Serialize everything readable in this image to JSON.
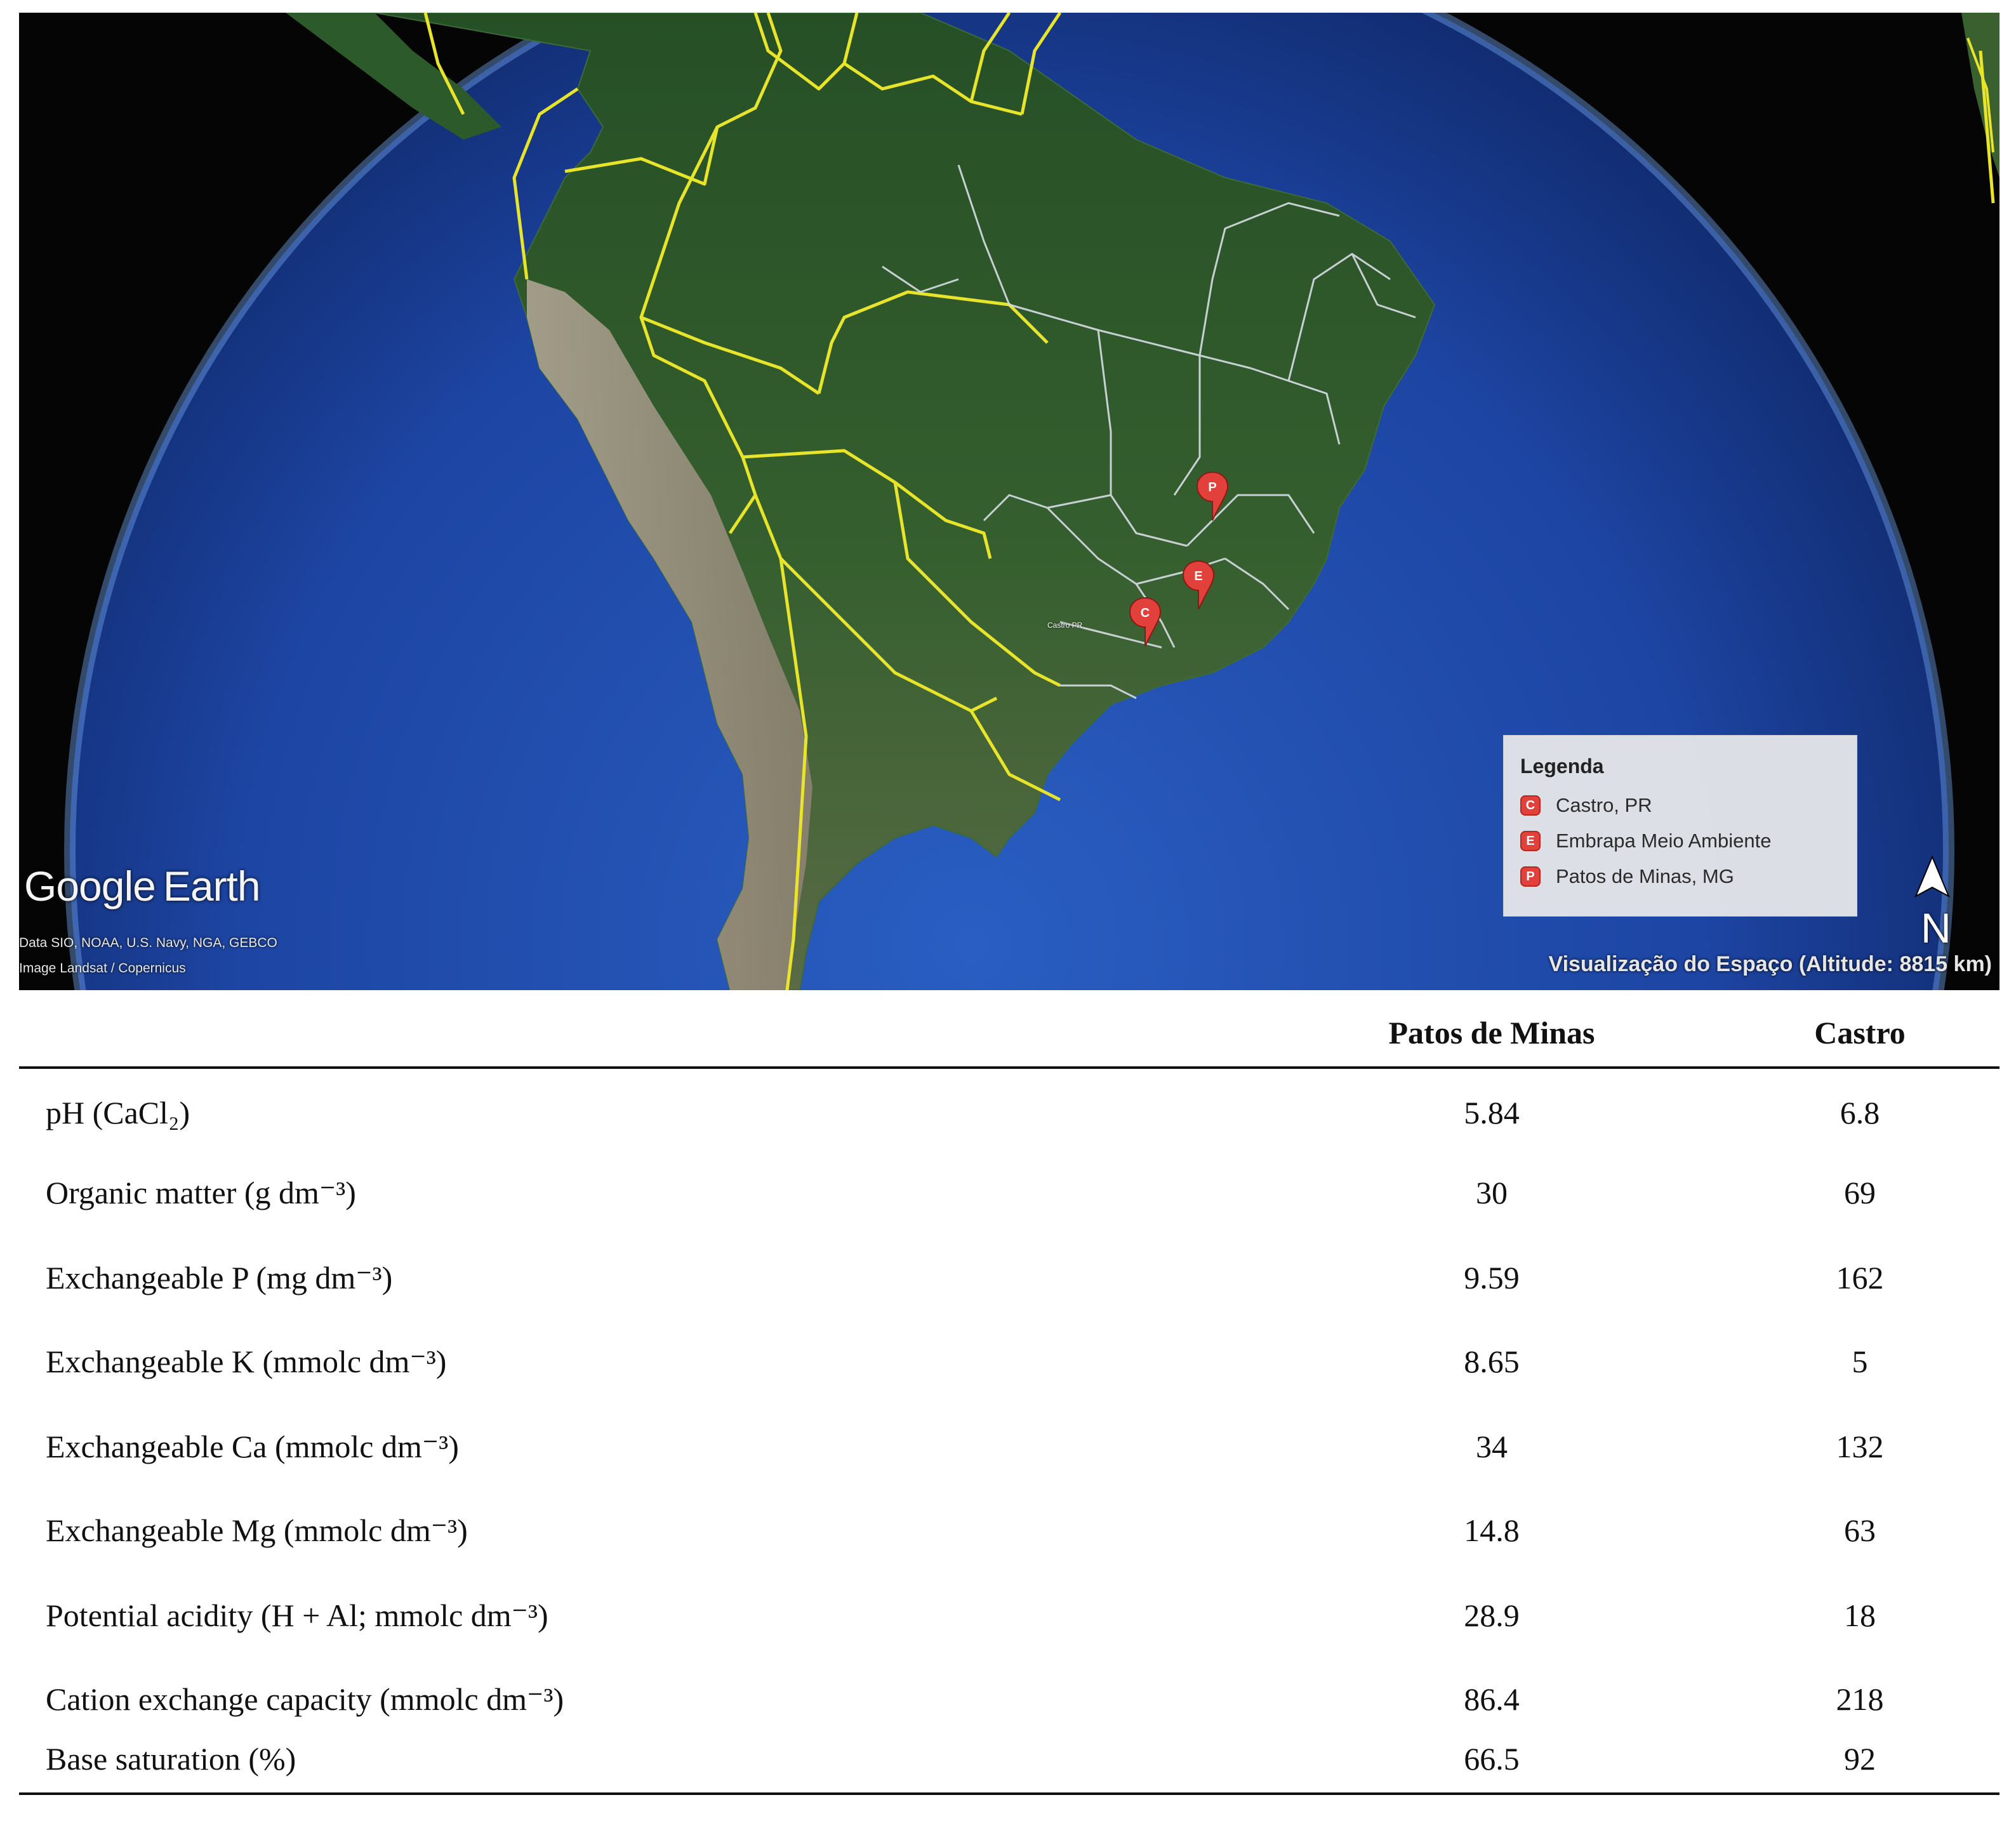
{
  "map": {
    "brand_google": "Google",
    "brand_earth": "Earth",
    "attribution_line1": "Data SIO, NOAA, U.S. Navy, NGA, GEBCO",
    "attribution_line2": "Image Landsat / Copernicus",
    "view_caption": "Visualização do Espaço (Altitude: 8815 km)",
    "north_label": "N",
    "pin_label_castro": "Castro PR",
    "pins": [
      {
        "letter": "P",
        "name": "Patos de Minas, MG"
      },
      {
        "letter": "E",
        "name": "Embrapa Meio Ambiente"
      },
      {
        "letter": "C",
        "name": "Castro, PR"
      }
    ],
    "legend": {
      "title": "Legenda",
      "items": [
        {
          "letter": "C",
          "label": "Castro, PR"
        },
        {
          "letter": "E",
          "label": "Embrapa Meio Ambiente"
        },
        {
          "letter": "P",
          "label": "Patos de Minas, MG"
        }
      ]
    },
    "colors": {
      "ocean": "#1f4aa8",
      "land": "#2f5a2c",
      "border_country": "#e8e42a",
      "border_state": "#d8dde6",
      "pin": "#e2413b"
    }
  },
  "table": {
    "columns": [
      "Patos de Minas",
      "Castro"
    ],
    "rows": [
      {
        "label": "pH (CaCl₂)",
        "patos": "5.84",
        "castro": "6.8"
      },
      {
        "label": "Organic matter (g dm⁻³)",
        "patos": "30",
        "castro": "69"
      },
      {
        "label": "Exchangeable P (mg dm⁻³)",
        "patos": "9.59",
        "castro": "162"
      },
      {
        "label": "Exchangeable K (mmolc dm⁻³)",
        "patos": "8.65",
        "castro": "5"
      },
      {
        "label": "Exchangeable Ca (mmolc dm⁻³)",
        "patos": "34",
        "castro": "132"
      },
      {
        "label": "Exchangeable Mg (mmolc dm⁻³)",
        "patos": "14.8",
        "castro": "63"
      },
      {
        "label": "Potential acidity (H + Al; mmolc dm⁻³)",
        "patos": "28.9",
        "castro": "18"
      },
      {
        "label": "Cation exchange capacity (mmolc dm⁻³)",
        "patos": "86.4",
        "castro": "218"
      },
      {
        "label": "Base saturation (%)",
        "patos": "66.5",
        "castro": "92"
      }
    ]
  }
}
